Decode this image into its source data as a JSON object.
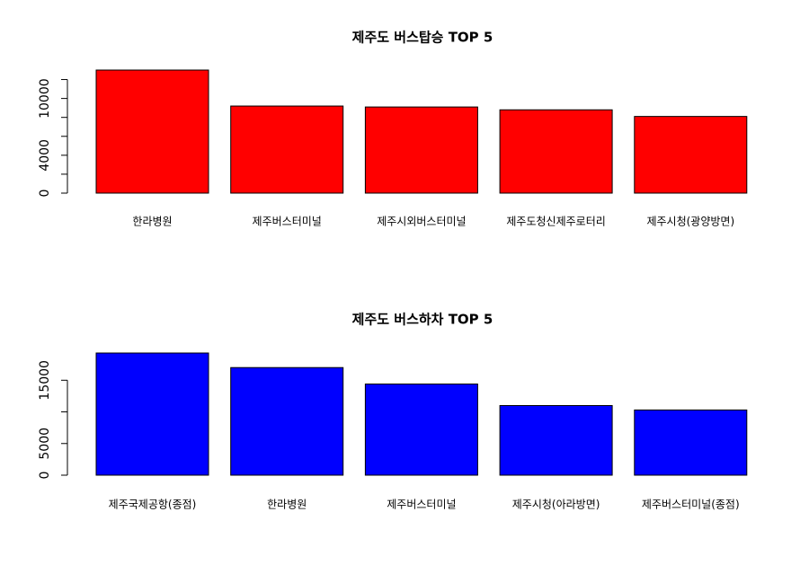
{
  "chart_data": [
    {
      "type": "bar",
      "title": "제주도 버스탑승 TOP 5",
      "categories": [
        "한라병원",
        "제주버스터미널",
        "제주시외버스터미널",
        "제주도청신제주로터리",
        "제주시청(광양방면)"
      ],
      "values": [
        13000,
        9200,
        9100,
        8800,
        8100
      ],
      "color": "#ff0000",
      "ylim": [
        0,
        13000
      ],
      "yticks": [
        0,
        {
          "value": 2000
        },
        4000,
        {
          "value": 6000
        },
        {
          "value": 8000
        },
        10000,
        {
          "value": 12000
        }
      ]
    },
    {
      "type": "bar",
      "title": "제주도 버스하차 TOP 5",
      "categories": [
        "제주국제공항(종점)",
        "한라병원",
        "제주버스터미널",
        "제주시청(아라방면)",
        "제주버스터미널(종점)"
      ],
      "values": [
        19300,
        17000,
        14400,
        11000,
        10300
      ],
      "color": "#0000ff",
      "ylim": [
        0,
        19300
      ],
      "yticks": [
        0,
        5000,
        {
          "value": 10000
        },
        15000
      ]
    }
  ]
}
